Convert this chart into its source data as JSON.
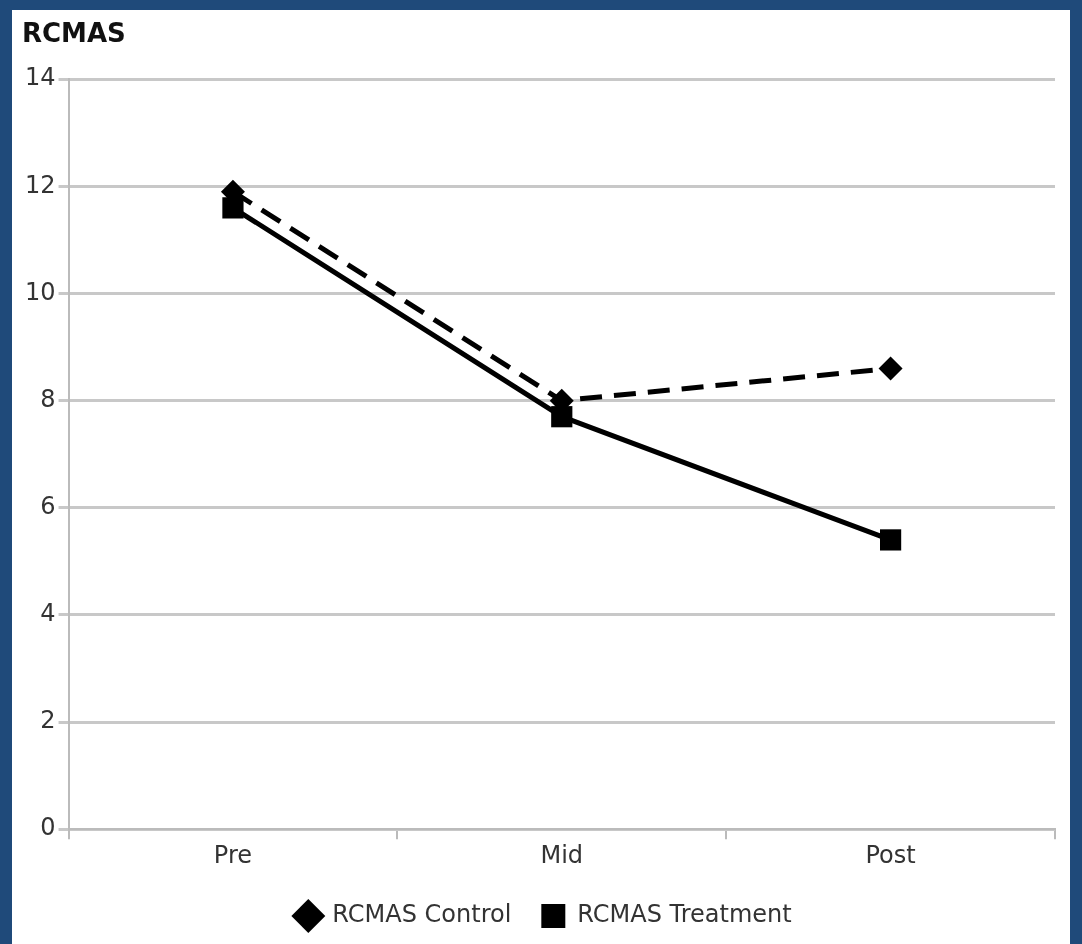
{
  "chart_data": {
    "type": "line",
    "title": "RCMAS",
    "categories": [
      "Pre",
      "Mid",
      "Post"
    ],
    "series": [
      {
        "name": "RCMAS Control",
        "color": "#000000",
        "values": [
          11.9,
          8.0,
          8.6
        ],
        "marker": "diamond",
        "line_style": "dashed"
      },
      {
        "name": "RCMAS Treatment",
        "color": "#000000",
        "values": [
          11.6,
          7.7,
          5.4
        ],
        "marker": "square",
        "line_style": "solid"
      }
    ],
    "ylim": [
      0,
      14
    ],
    "yticks": [
      0,
      2,
      4,
      6,
      8,
      10,
      12,
      14
    ],
    "grid": "y",
    "legend": "bottom"
  }
}
